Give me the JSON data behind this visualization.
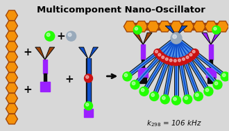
{
  "title": "Multicomponent Nano-Oscillator",
  "title_fontsize": 9.5,
  "bg_color": "#d8d8d8",
  "orange": "#F5920A",
  "dark_orange": "#A0460A",
  "purple": "#9B20FF",
  "dark_purple": "#6600AA",
  "black": "#0a0a0a",
  "blue": "#1050CC",
  "light_blue": "#5599EE",
  "sky_blue": "#88CCFF",
  "green": "#22FF00",
  "dark_green": "#008800",
  "red": "#CC1111",
  "white": "#FFFFFF",
  "gray_ball": "#99AABB",
  "formula": "k",
  "formula_sub": "298",
  "formula_val": " = 106 kHz",
  "formula_fontsize": 7.5
}
